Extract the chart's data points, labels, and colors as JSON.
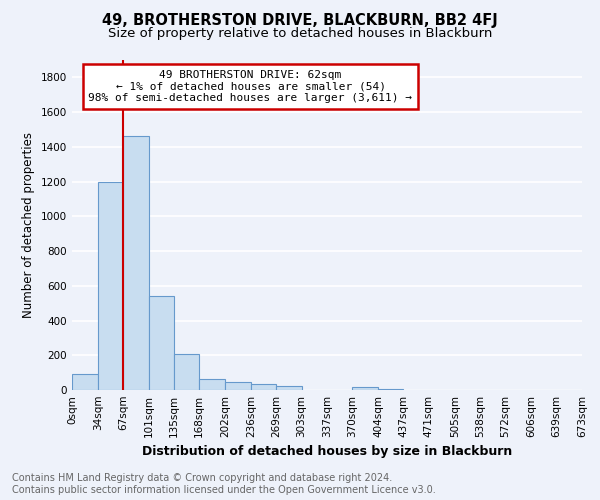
{
  "title": "49, BROTHERSTON DRIVE, BLACKBURN, BB2 4FJ",
  "subtitle": "Size of property relative to detached houses in Blackburn",
  "xlabel": "Distribution of detached houses by size in Blackburn",
  "ylabel": "Number of detached properties",
  "bar_color": "#c8ddf0",
  "bar_edge_color": "#6699cc",
  "annotation_box_color": "#ffffff",
  "annotation_border_color": "#cc0000",
  "red_line_x": 67,
  "annotation_text_line1": "49 BROTHERSTON DRIVE: 62sqm",
  "annotation_text_line2": "← 1% of detached houses are smaller (54)",
  "annotation_text_line3": "98% of semi-detached houses are larger (3,611) →",
  "bin_edges": [
    0,
    34,
    67,
    101,
    135,
    168,
    202,
    236,
    269,
    303,
    337,
    370,
    404,
    437,
    471,
    505,
    538,
    572,
    606,
    639,
    673
  ],
  "bin_counts": [
    90,
    1200,
    1460,
    540,
    205,
    65,
    47,
    32,
    22,
    0,
    0,
    20,
    8,
    0,
    0,
    0,
    0,
    0,
    0,
    0
  ],
  "ylim": [
    0,
    1900
  ],
  "yticks": [
    0,
    200,
    400,
    600,
    800,
    1000,
    1200,
    1400,
    1600,
    1800
  ],
  "footer_line1": "Contains HM Land Registry data © Crown copyright and database right 2024.",
  "footer_line2": "Contains public sector information licensed under the Open Government Licence v3.0.",
  "background_color": "#eef2fa",
  "grid_color": "#ffffff",
  "title_fontsize": 10.5,
  "subtitle_fontsize": 9.5,
  "xlabel_fontsize": 9,
  "ylabel_fontsize": 8.5,
  "tick_fontsize": 7.5,
  "footer_fontsize": 7.0
}
